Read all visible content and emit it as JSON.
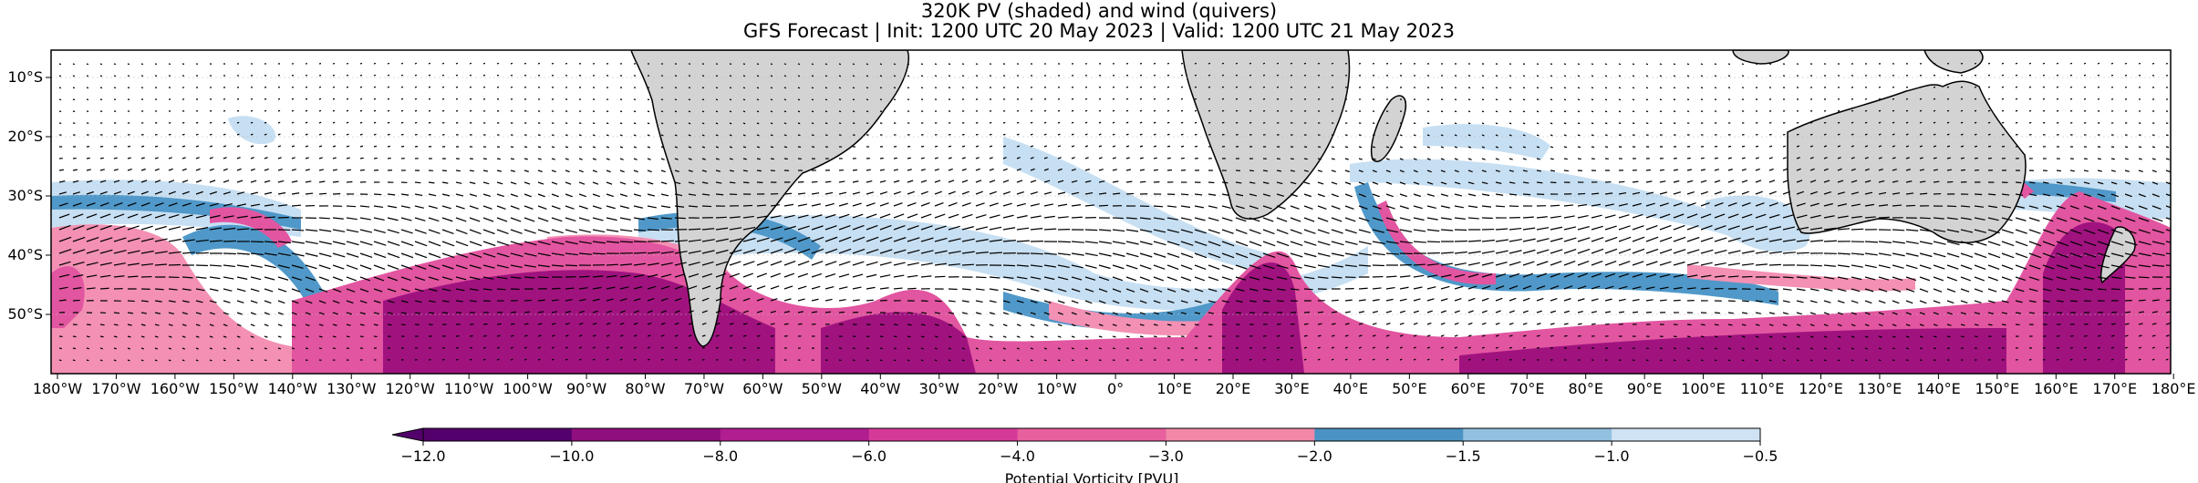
{
  "title": "320K PV (shaded) and wind (quivers)",
  "subtitle": "GFS Forecast | Init: 1200 UTC 20 May 2023 | Valid: 1200 UTC 21 May 2023",
  "lon_ticks": [
    "180°W",
    "170°W",
    "160°W",
    "150°W",
    "140°W",
    "130°W",
    "120°W",
    "110°W",
    "100°W",
    "90°W",
    "80°W",
    "70°W",
    "60°W",
    "50°W",
    "40°W",
    "30°W",
    "20°W",
    "10°W",
    "0°",
    "10°E",
    "20°E",
    "30°E",
    "40°E",
    "50°E",
    "60°E",
    "70°E",
    "80°E",
    "90°E",
    "100°E",
    "110°E",
    "120°E",
    "130°E",
    "140°E",
    "150°E",
    "160°E",
    "170°E",
    "180°E"
  ],
  "lat_ticks": [
    "10°S",
    "20°S",
    "30°S",
    "40°S",
    "50°S"
  ],
  "colorbar": {
    "label": "Potential Vorticity [PVU]",
    "ticks": [
      "−12.0",
      "−10.0",
      "−8.0",
      "−6.0",
      "−4.0",
      "−3.0",
      "−2.0",
      "−1.5",
      "−1.0",
      "−0.5"
    ],
    "colors": [
      "#54006c",
      "#8f0f7f",
      "#b01e8f",
      "#d63a98",
      "#e8609e",
      "#f188a8",
      "#4a93c4",
      "#92c0df",
      "#cfe3f4"
    ]
  },
  "colors": {
    "land": "#d3d3d3",
    "pv_strong": "#a0137f",
    "pv_mid": "#e255a0",
    "pv_weak": "#f390b3",
    "pv_blue": "#4f98c9",
    "pv_lightblue": "#c7dff2"
  }
}
